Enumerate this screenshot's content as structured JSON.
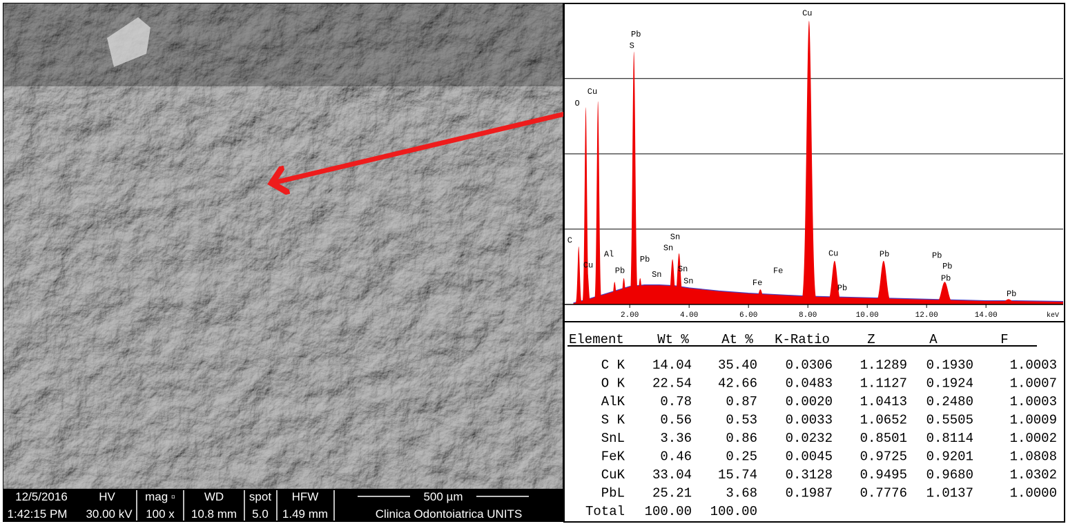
{
  "sem": {
    "info": [
      {
        "top": "12/5/2016",
        "bottom": "1:42:15 PM"
      },
      {
        "top": "HV",
        "bottom": "30.00 kV"
      },
      {
        "top": "mag ▫",
        "bottom": "100 x"
      },
      {
        "top": "WD",
        "bottom": "10.8 mm"
      },
      {
        "top": "spot",
        "bottom": "5.0"
      },
      {
        "top": "HFW",
        "bottom": "1.49 mm"
      },
      {
        "top": "500 µm",
        "bottom": "Clinica Odontoiatrica UNITS"
      }
    ]
  },
  "spectrum": {
    "x_unit": "keV",
    "xlim": [
      -0.19,
      16.6
    ],
    "ylim": [
      0,
      3.97
    ],
    "xticks": [
      {
        "value": 2,
        "label": "2.00"
      },
      {
        "value": 4,
        "label": "4.00"
      },
      {
        "value": 6,
        "label": "6.00"
      },
      {
        "value": 8,
        "label": "8.00"
      },
      {
        "value": 10,
        "label": "10.00"
      },
      {
        "value": 12,
        "label": "12.00"
      },
      {
        "value": 14,
        "label": "14.00"
      }
    ],
    "gridlines": [
      1,
      2,
      3
    ],
    "fill_color": "#ee0000",
    "background_color": "#4a3fc0",
    "background": {
      "x": [
        0.1,
        0.5,
        1,
        1.5,
        2,
        2.5,
        3,
        3.5,
        4,
        5,
        6,
        7,
        8,
        9,
        10,
        11,
        12,
        13,
        14,
        15,
        16.6
      ],
      "values": [
        0.02,
        0.06,
        0.12,
        0.18,
        0.24,
        0.26,
        0.26,
        0.25,
        0.22,
        0.18,
        0.15,
        0.13,
        0.11,
        0.1,
        0.09,
        0.08,
        0.07,
        0.06,
        0.05,
        0.05,
        0.04
      ]
    },
    "peaks": [
      {
        "energy": 0.28,
        "height": 0.77
      },
      {
        "energy": 0.52,
        "height": 2.62
      },
      {
        "energy": 0.58,
        "height": 0.42
      },
      {
        "energy": 0.93,
        "height": 2.7
      },
      {
        "energy": 1.49,
        "height": 0.3
      },
      {
        "energy": 1.8,
        "height": 0.35
      },
      {
        "energy": 2.14,
        "height": 3.36
      },
      {
        "energy": 2.35,
        "height": 0.35
      },
      {
        "energy": 3.44,
        "height": 0.6
      },
      {
        "energy": 3.66,
        "height": 0.68
      },
      {
        "energy": 6.4,
        "height": 0.2
      },
      {
        "energy": 8.04,
        "height": 3.77
      },
      {
        "energy": 8.9,
        "height": 0.58
      },
      {
        "energy": 10.55,
        "height": 0.58
      },
      {
        "energy": 12.61,
        "height": 0.3
      },
      {
        "energy": 14.76,
        "height": 0.07
      }
    ],
    "labels": [
      {
        "text": "Cu",
        "energy": 7.98,
        "height": 3.82
      },
      {
        "text": "Pb",
        "energy": 2.21,
        "height": 3.54
      },
      {
        "text": "S",
        "energy": 2.07,
        "height": 3.39
      },
      {
        "text": "Cu",
        "energy": 0.74,
        "height": 2.78
      },
      {
        "text": "O",
        "energy": 0.23,
        "height": 2.62
      },
      {
        "text": "C",
        "energy": -0.02,
        "height": 0.8
      },
      {
        "text": "Cu",
        "energy": 0.6,
        "height": 0.47
      },
      {
        "text": "Al",
        "energy": 1.3,
        "height": 0.62
      },
      {
        "text": "Pb",
        "energy": 1.67,
        "height": 0.4
      },
      {
        "text": "Pb",
        "energy": 2.51,
        "height": 0.55
      },
      {
        "text": "Sn",
        "energy": 3.53,
        "height": 0.85
      },
      {
        "text": "Sn",
        "energy": 3.3,
        "height": 0.7
      },
      {
        "text": "Sn",
        "energy": 2.91,
        "height": 0.35
      },
      {
        "text": "Sn",
        "energy": 3.79,
        "height": 0.42
      },
      {
        "text": "Sn",
        "energy": 3.98,
        "height": 0.26
      },
      {
        "text": "Fe",
        "energy": 6.3,
        "height": 0.24
      },
      {
        "text": "Fe",
        "energy": 7.0,
        "height": 0.4
      },
      {
        "text": "Cu",
        "energy": 8.86,
        "height": 0.63
      },
      {
        "text": "Pb",
        "energy": 9.16,
        "height": 0.17
      },
      {
        "text": "Pb",
        "energy": 10.58,
        "height": 0.62
      },
      {
        "text": "Pb",
        "energy": 12.35,
        "height": 0.6
      },
      {
        "text": "Pb",
        "energy": 12.7,
        "height": 0.46
      },
      {
        "text": "Pb",
        "energy": 12.65,
        "height": 0.3
      },
      {
        "text": "Pb",
        "energy": 14.86,
        "height": 0.09
      }
    ]
  },
  "table": {
    "headers": [
      "Element",
      "Wt %",
      "At %",
      "K-Ratio",
      "Z",
      "A",
      "F"
    ],
    "rows": [
      [
        "C K",
        "14.04",
        "35.40",
        "0.0306",
        "1.1289",
        "0.1930",
        "1.0003"
      ],
      [
        "O K",
        "22.54",
        "42.66",
        "0.0483",
        "1.1127",
        "0.1924",
        "1.0007"
      ],
      [
        "AlK",
        "0.78",
        "0.87",
        "0.0020",
        "1.0413",
        "0.2480",
        "1.0003"
      ],
      [
        "S K",
        "0.56",
        "0.53",
        "0.0033",
        "1.0652",
        "0.5505",
        "1.0009"
      ],
      [
        "SnL",
        "3.36",
        "0.86",
        "0.0232",
        "0.8501",
        "0.8114",
        "1.0002"
      ],
      [
        "FeK",
        "0.46",
        "0.25",
        "0.0045",
        "0.9725",
        "0.9201",
        "1.0808"
      ],
      [
        "CuK",
        "33.04",
        "15.74",
        "0.3128",
        "0.9495",
        "0.9680",
        "1.0302"
      ],
      [
        "PbL",
        "25.21",
        "3.68",
        "0.1987",
        "0.7776",
        "1.0137",
        "1.0000"
      ],
      [
        "Total",
        "100.00",
        "100.00"
      ]
    ]
  }
}
